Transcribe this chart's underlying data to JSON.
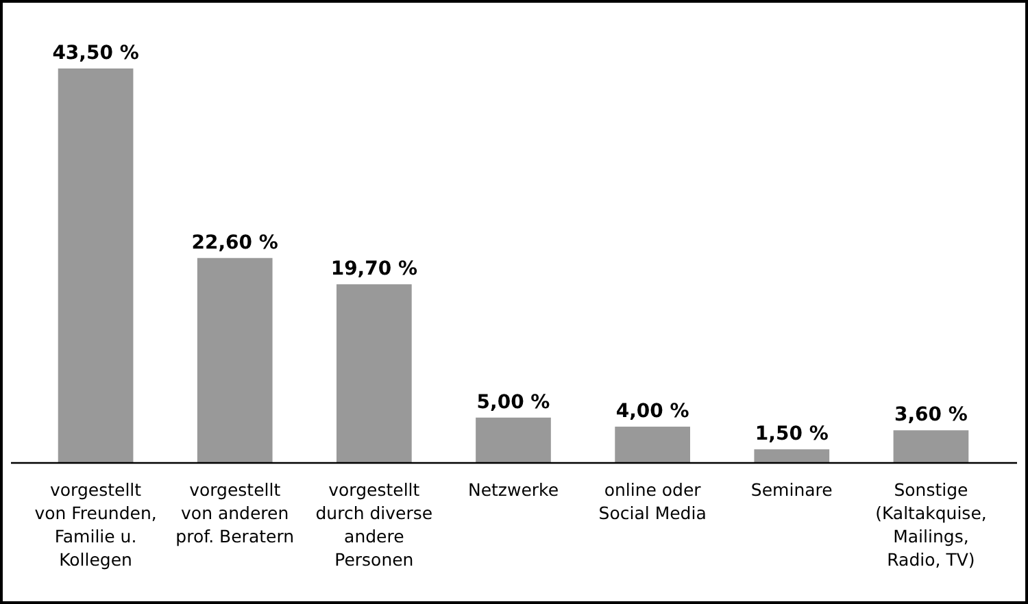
{
  "chart_data": {
    "type": "bar",
    "categories": [
      "vorgestellt von Freunden, Familie u. Kollegen",
      "vorgestellt von anderen prof. Beratern",
      "vorgestellt durch diverse andere Personen",
      "Netzwerke",
      "online oder Social Media",
      "Seminare",
      "Sonstige (Kaltakquise, Mailings, Radio, TV)"
    ],
    "values": [
      43.5,
      22.6,
      19.7,
      5.0,
      4.0,
      1.5,
      3.6
    ],
    "value_labels": [
      "43,50 %",
      "22,60 %",
      "19,70 %",
      "5,00 %",
      "4,00 %",
      "1,50 %",
      "3,60 %"
    ],
    "color": "#999999"
  }
}
